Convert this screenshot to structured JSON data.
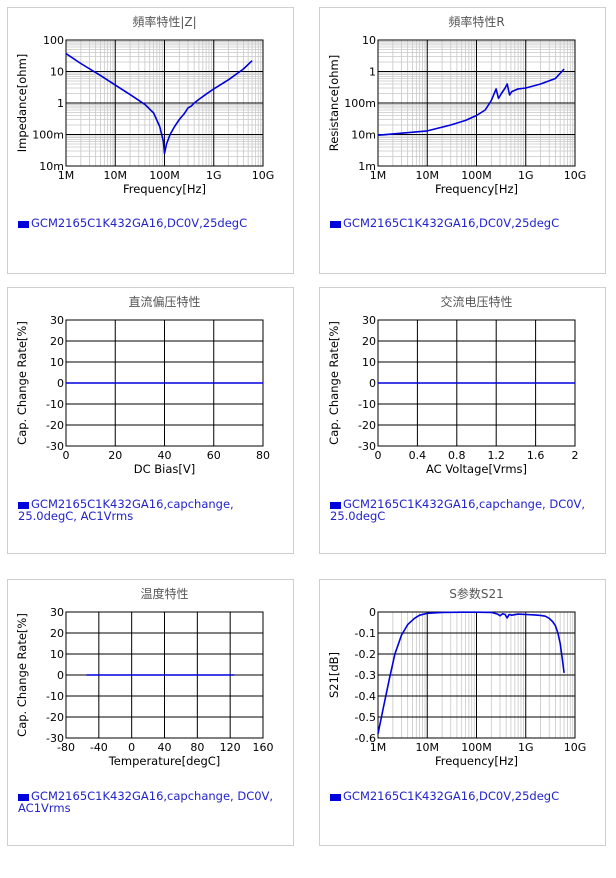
{
  "colors": {
    "line": "#0000dd",
    "grid_major": "#000000",
    "grid_minor": "#c8c8c8",
    "legend_text": "#2222cc"
  },
  "chart_data": [
    {
      "id": "impedance",
      "type": "line",
      "title": "頻率特性|Z|",
      "xlabel": "Frequency[Hz]",
      "ylabel": "Impedance[ohm]",
      "xscale": "log",
      "yscale": "log",
      "xlim": [
        1000000,
        10000000000
      ],
      "ylim": [
        0.01,
        100
      ],
      "xticks": [
        {
          "v": 1000000,
          "label": "1M"
        },
        {
          "v": 10000000,
          "label": "10M"
        },
        {
          "v": 100000000,
          "label": "100M"
        },
        {
          "v": 1000000000,
          "label": "1G"
        },
        {
          "v": 10000000000,
          "label": "10G"
        }
      ],
      "yticks": [
        {
          "v": 0.01,
          "label": "10m"
        },
        {
          "v": 0.1,
          "label": "100m"
        },
        {
          "v": 1,
          "label": "1"
        },
        {
          "v": 10,
          "label": "10"
        },
        {
          "v": 100,
          "label": "100"
        }
      ],
      "legend": "GCM2165C1K432GA16,DC0V,25degC",
      "series": [
        {
          "x": [
            1000000,
            2000000,
            5000000,
            10000000,
            20000000,
            40000000,
            60000000,
            80000000,
            95000000,
            100000000,
            110000000,
            130000000,
            160000000,
            200000000,
            250000000,
            300000000,
            350000000,
            400000000,
            500000000,
            700000000,
            1000000000,
            2000000000,
            4000000000,
            6000000000
          ],
          "y": [
            37,
            18,
            7.5,
            3.7,
            1.85,
            0.9,
            0.48,
            0.18,
            0.06,
            0.025,
            0.05,
            0.1,
            0.18,
            0.3,
            0.45,
            0.7,
            0.8,
            1.0,
            1.3,
            1.9,
            2.8,
            5.5,
            12,
            22
          ]
        }
      ]
    },
    {
      "id": "resistance",
      "type": "line",
      "title": "頻率特性R",
      "xlabel": "Frequency[Hz]",
      "ylabel": "Resistance[ohm]",
      "xscale": "log",
      "yscale": "log",
      "xlim": [
        1000000,
        10000000000
      ],
      "ylim": [
        0.001,
        10
      ],
      "xticks": [
        {
          "v": 1000000,
          "label": "1M"
        },
        {
          "v": 10000000,
          "label": "10M"
        },
        {
          "v": 100000000,
          "label": "100M"
        },
        {
          "v": 1000000000,
          "label": "1G"
        },
        {
          "v": 10000000000,
          "label": "10G"
        }
      ],
      "yticks": [
        {
          "v": 0.001,
          "label": "1m"
        },
        {
          "v": 0.01,
          "label": "10m"
        },
        {
          "v": 0.1,
          "label": "100m"
        },
        {
          "v": 1,
          "label": "1"
        },
        {
          "v": 10,
          "label": "10"
        }
      ],
      "legend": "GCM2165C1K432GA16,DC0V,25degC",
      "series": [
        {
          "x": [
            1000000,
            3000000,
            10000000,
            30000000,
            60000000,
            100000000,
            150000000,
            200000000,
            250000000,
            280000000,
            320000000,
            380000000,
            420000000,
            470000000,
            520000000,
            700000000,
            1000000000,
            2000000000,
            4000000000,
            6000000000
          ],
          "y": [
            0.0095,
            0.011,
            0.013,
            0.02,
            0.028,
            0.04,
            0.06,
            0.12,
            0.28,
            0.14,
            0.2,
            0.3,
            0.4,
            0.18,
            0.23,
            0.28,
            0.3,
            0.4,
            0.6,
            1.2
          ]
        }
      ]
    },
    {
      "id": "dcbias",
      "type": "line",
      "title": "直流偏压特性",
      "xlabel": "DC Bias[V]",
      "ylabel": "Cap. Change Rate[%]",
      "xscale": "linear",
      "yscale": "linear",
      "xlim": [
        0,
        80
      ],
      "ylim": [
        -30,
        30
      ],
      "xticks": [
        {
          "v": 0,
          "label": "0"
        },
        {
          "v": 20,
          "label": "20"
        },
        {
          "v": 40,
          "label": "40"
        },
        {
          "v": 60,
          "label": "60"
        },
        {
          "v": 80,
          "label": "80"
        }
      ],
      "yticks": [
        {
          "v": -30,
          "label": "-30"
        },
        {
          "v": -20,
          "label": "-20"
        },
        {
          "v": -10,
          "label": "-10"
        },
        {
          "v": 0,
          "label": "0"
        },
        {
          "v": 10,
          "label": "10"
        },
        {
          "v": 20,
          "label": "20"
        },
        {
          "v": 30,
          "label": "30"
        }
      ],
      "legend": "GCM2165C1K432GA16,capchange,\n25.0degC, AC1Vrms",
      "series": [
        {
          "x": [
            0,
            80
          ],
          "y": [
            0,
            0
          ]
        }
      ]
    },
    {
      "id": "acvoltage",
      "type": "line",
      "title": "交流电压特性",
      "xlabel": "AC Voltage[Vrms]",
      "ylabel": "Cap. Change Rate[%]",
      "xscale": "linear",
      "yscale": "linear",
      "xlim": [
        0,
        2
      ],
      "ylim": [
        -30,
        30
      ],
      "xticks": [
        {
          "v": 0,
          "label": "0"
        },
        {
          "v": 0.4,
          "label": "0.4"
        },
        {
          "v": 0.8,
          "label": "0.8"
        },
        {
          "v": 1.2,
          "label": "1.2"
        },
        {
          "v": 1.6,
          "label": "1.6"
        },
        {
          "v": 2,
          "label": "2"
        }
      ],
      "yticks": [
        {
          "v": -30,
          "label": "-30"
        },
        {
          "v": -20,
          "label": "-20"
        },
        {
          "v": -10,
          "label": "-10"
        },
        {
          "v": 0,
          "label": "0"
        },
        {
          "v": 10,
          "label": "10"
        },
        {
          "v": 20,
          "label": "20"
        },
        {
          "v": 30,
          "label": "30"
        }
      ],
      "legend": "GCM2165C1K432GA16,capchange, DC0V,\n25.0degC",
      "series": [
        {
          "x": [
            0,
            2
          ],
          "y": [
            0,
            0
          ]
        }
      ]
    },
    {
      "id": "temperature",
      "type": "line",
      "title": "温度特性",
      "xlabel": "Temperature[degC]",
      "ylabel": "Cap. Change Rate[%]",
      "xscale": "linear",
      "yscale": "linear",
      "xlim": [
        -80,
        160
      ],
      "ylim": [
        -30,
        30
      ],
      "xticks": [
        {
          "v": -80,
          "label": "-80"
        },
        {
          "v": -40,
          "label": "-40"
        },
        {
          "v": 0,
          "label": "0"
        },
        {
          "v": 40,
          "label": "40"
        },
        {
          "v": 80,
          "label": "80"
        },
        {
          "v": 120,
          "label": "120"
        },
        {
          "v": 160,
          "label": "160"
        }
      ],
      "yticks": [
        {
          "v": -30,
          "label": "-30"
        },
        {
          "v": -20,
          "label": "-20"
        },
        {
          "v": -10,
          "label": "-10"
        },
        {
          "v": 0,
          "label": "0"
        },
        {
          "v": 10,
          "label": "10"
        },
        {
          "v": 20,
          "label": "20"
        },
        {
          "v": 30,
          "label": "30"
        }
      ],
      "legend": "GCM2165C1K432GA16,capchange, DC0V,\nAC1Vrms",
      "series": [
        {
          "x": [
            -55,
            125
          ],
          "y": [
            0,
            0
          ]
        }
      ]
    },
    {
      "id": "s21",
      "type": "line",
      "title": "S参数S21",
      "xlabel": "Frequency[Hz]",
      "ylabel": "S21[dB]",
      "xscale": "log",
      "yscale": "linear",
      "xlim": [
        1000000,
        10000000000
      ],
      "ylim": [
        -0.6,
        0
      ],
      "xticks": [
        {
          "v": 1000000,
          "label": "1M"
        },
        {
          "v": 10000000,
          "label": "10M"
        },
        {
          "v": 100000000,
          "label": "100M"
        },
        {
          "v": 1000000000,
          "label": "1G"
        },
        {
          "v": 10000000000,
          "label": "10G"
        }
      ],
      "yticks": [
        {
          "v": -0.6,
          "label": "-0.6"
        },
        {
          "v": -0.5,
          "label": "-0.5"
        },
        {
          "v": -0.4,
          "label": "-0.4"
        },
        {
          "v": -0.3,
          "label": "-0.3"
        },
        {
          "v": -0.2,
          "label": "-0.2"
        },
        {
          "v": -0.1,
          "label": "-0.1"
        },
        {
          "v": 0,
          "label": "0"
        }
      ],
      "legend": "GCM2165C1K432GA16,DC0V,25degC",
      "series": [
        {
          "x": [
            1000000,
            1300000,
            1700000,
            2200000,
            3000000,
            4000000,
            5500000,
            7000000,
            10000000,
            20000000,
            50000000,
            100000000,
            200000000,
            270000000,
            300000000,
            340000000,
            380000000,
            420000000,
            460000000,
            520000000,
            700000000,
            1000000000,
            1500000000,
            2000000000,
            2500000000,
            3000000000,
            3500000000,
            4000000000,
            4500000000,
            5000000000,
            5500000000,
            6000000000
          ],
          "y": [
            -0.58,
            -0.45,
            -0.32,
            -0.2,
            -0.11,
            -0.06,
            -0.03,
            -0.015,
            -0.006,
            -0.002,
            -0.001,
            -0.001,
            -0.002,
            -0.01,
            -0.018,
            -0.008,
            -0.012,
            -0.028,
            -0.012,
            -0.015,
            -0.01,
            -0.012,
            -0.014,
            -0.016,
            -0.02,
            -0.03,
            -0.045,
            -0.065,
            -0.1,
            -0.15,
            -0.22,
            -0.29
          ]
        }
      ]
    }
  ]
}
